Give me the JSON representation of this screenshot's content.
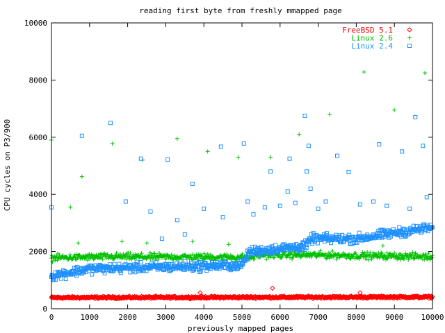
{
  "chart_data": {
    "type": "scatter",
    "title": "reading first byte from freshly mmapped page",
    "xlabel": "previously mapped pages",
    "ylabel": "CPU cycles on P3/900",
    "xlim": [
      0,
      10000
    ],
    "ylim": [
      0,
      10000
    ],
    "xticks": [
      0,
      1000,
      2000,
      3000,
      4000,
      5000,
      6000,
      7000,
      8000,
      9000,
      10000
    ],
    "yticks": [
      0,
      2000,
      4000,
      6000,
      8000,
      10000
    ],
    "grid": false,
    "legend_position": "top-right",
    "series": [
      {
        "name": "FreeBSD 5.1",
        "color": "#ff0000",
        "marker": "diamond",
        "trend": [
          [
            0,
            390
          ],
          [
            10000,
            410
          ]
        ],
        "spread": 110,
        "outliers": [
          [
            5800,
            720
          ],
          [
            3900,
            560
          ],
          [
            8100,
            560
          ]
        ]
      },
      {
        "name": "Linux 2.6",
        "color": "#00c000",
        "marker": "plus",
        "trend": [
          [
            0,
            1780
          ],
          [
            1500,
            1820
          ],
          [
            5300,
            1800
          ],
          [
            5400,
            1880
          ],
          [
            7000,
            1880
          ],
          [
            10000,
            1820
          ]
        ],
        "spread": 350,
        "outliers": [
          [
            0,
            5900
          ],
          [
            500,
            3550
          ],
          [
            800,
            4620
          ],
          [
            1600,
            5780
          ],
          [
            2400,
            5200
          ],
          [
            3300,
            5950
          ],
          [
            4100,
            5500
          ],
          [
            4900,
            5300
          ],
          [
            5750,
            5300
          ],
          [
            6500,
            6100
          ],
          [
            7300,
            6800
          ],
          [
            8200,
            8280
          ],
          [
            9000,
            6950
          ],
          [
            9800,
            8250
          ],
          [
            700,
            2300
          ],
          [
            1850,
            2350
          ],
          [
            2500,
            2300
          ],
          [
            3700,
            2350
          ],
          [
            4650,
            2250
          ],
          [
            6000,
            2150
          ],
          [
            8700,
            2200
          ]
        ]
      },
      {
        "name": "Linux 2.4",
        "color": "#1e90ff",
        "marker": "square",
        "trend": [
          [
            0,
            1150
          ],
          [
            1000,
            1400
          ],
          [
            5000,
            1520
          ],
          [
            5200,
            2000
          ],
          [
            6700,
            2200
          ],
          [
            6800,
            2450
          ],
          [
            8000,
            2450
          ],
          [
            10000,
            2850
          ]
        ],
        "spread": 480,
        "outliers": [
          [
            0,
            3550
          ],
          [
            800,
            6050
          ],
          [
            1550,
            6500
          ],
          [
            1950,
            3750
          ],
          [
            2350,
            5250
          ],
          [
            2600,
            3400
          ],
          [
            3050,
            5220
          ],
          [
            3300,
            3100
          ],
          [
            3700,
            4370
          ],
          [
            4000,
            3500
          ],
          [
            4450,
            5670
          ],
          [
            5050,
            5780
          ],
          [
            5150,
            3750
          ],
          [
            5750,
            4800
          ],
          [
            6250,
            5250
          ],
          [
            6650,
            6750
          ],
          [
            6750,
            5700
          ],
          [
            6700,
            4800
          ],
          [
            7000,
            3500
          ],
          [
            7500,
            5350
          ],
          [
            7800,
            4780
          ],
          [
            8450,
            3750
          ],
          [
            8600,
            5750
          ],
          [
            9200,
            5500
          ],
          [
            9550,
            6700
          ],
          [
            9750,
            5700
          ],
          [
            9850,
            3900
          ],
          [
            5600,
            3550
          ],
          [
            5300,
            3300
          ],
          [
            4500,
            3200
          ],
          [
            3500,
            2600
          ],
          [
            2900,
            2450
          ],
          [
            6000,
            3600
          ],
          [
            6400,
            3700
          ],
          [
            7200,
            3750
          ],
          [
            8100,
            3650
          ],
          [
            8800,
            3600
          ],
          [
            9400,
            3500
          ],
          [
            6200,
            4100
          ],
          [
            6800,
            4200
          ]
        ]
      }
    ]
  }
}
